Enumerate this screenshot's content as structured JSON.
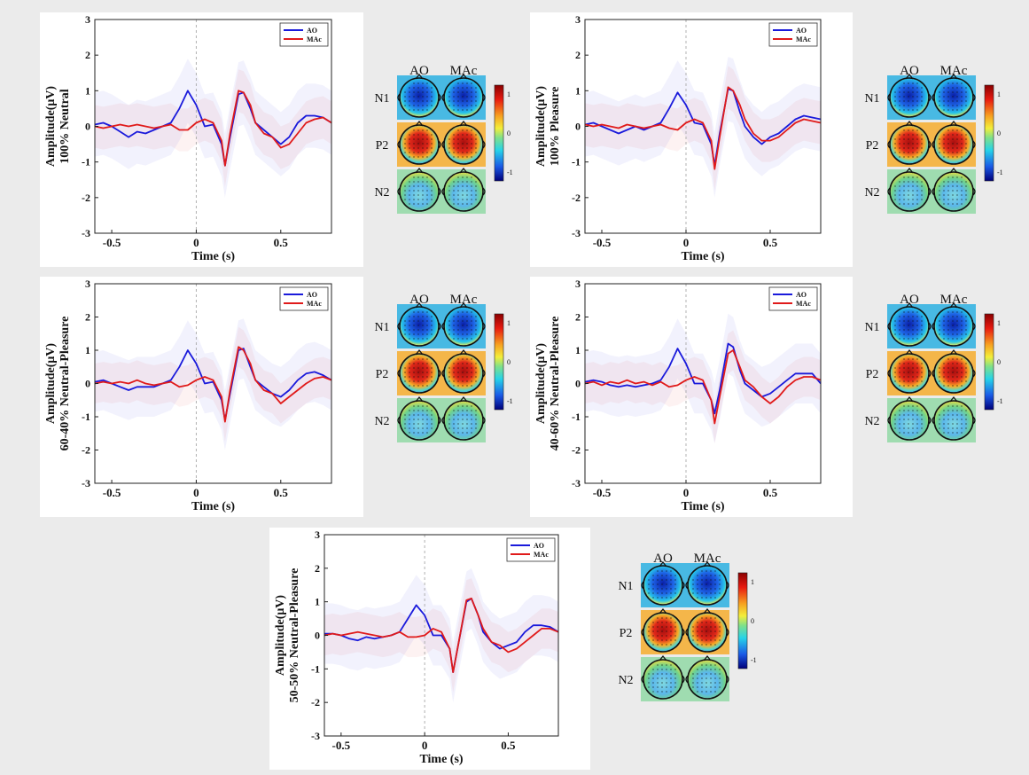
{
  "common": {
    "xlabel": "Time (s)",
    "x_ticks": [
      -0.5,
      0,
      0.5
    ],
    "y_ticks": [
      -3,
      -2,
      -1,
      0,
      1,
      2,
      3
    ],
    "xlim": [
      -0.6,
      0.8
    ],
    "ylim": [
      -3,
      3
    ],
    "legend": [
      "AO",
      "MAc"
    ],
    "colors": {
      "AO": "#1a1adb",
      "MAc": "#e01a1a"
    },
    "topo_cols": [
      "AO",
      "MAc"
    ],
    "topo_rows": [
      "N1",
      "P2",
      "N2"
    ],
    "colorbar_ticks": [
      "1",
      "0",
      "-1"
    ]
  },
  "chart_data": [
    {
      "type": "line",
      "ylabel": "Amplitude(μV)",
      "ylabel2": "100% Neutral",
      "xlabel": "Time (s)",
      "xlim": [
        -0.6,
        0.8
      ],
      "ylim": [
        -3,
        3
      ],
      "grid": false,
      "legend_position": "top-right",
      "series": [
        {
          "name": "AO",
          "x": [
            -0.6,
            -0.55,
            -0.5,
            -0.45,
            -0.4,
            -0.35,
            -0.3,
            -0.25,
            -0.2,
            -0.15,
            -0.1,
            -0.05,
            0,
            0.05,
            0.1,
            0.15,
            0.17,
            0.2,
            0.25,
            0.28,
            0.32,
            0.35,
            0.4,
            0.45,
            0.5,
            0.55,
            0.6,
            0.65,
            0.7,
            0.75,
            0.8
          ],
          "y": [
            0.05,
            0.1,
            0.0,
            -0.15,
            -0.3,
            -0.15,
            -0.2,
            -0.1,
            0.0,
            0.1,
            0.5,
            1.0,
            0.6,
            0.0,
            0.05,
            -0.5,
            -1.1,
            -0.3,
            0.9,
            0.95,
            0.5,
            0.1,
            -0.1,
            -0.3,
            -0.5,
            -0.3,
            0.1,
            0.3,
            0.3,
            0.25,
            0.1
          ]
        },
        {
          "name": "MAc",
          "x": [
            -0.6,
            -0.55,
            -0.5,
            -0.45,
            -0.4,
            -0.35,
            -0.3,
            -0.25,
            -0.2,
            -0.15,
            -0.1,
            -0.05,
            0,
            0.05,
            0.1,
            0.15,
            0.17,
            0.2,
            0.25,
            0.28,
            0.32,
            0.35,
            0.4,
            0.45,
            0.5,
            0.55,
            0.6,
            0.65,
            0.7,
            0.75,
            0.8
          ],
          "y": [
            0.0,
            -0.05,
            0.0,
            0.05,
            0.0,
            0.05,
            0.0,
            -0.05,
            0.0,
            0.05,
            -0.1,
            -0.1,
            0.1,
            0.2,
            0.1,
            -0.4,
            -1.1,
            -0.2,
            1.0,
            0.95,
            0.6,
            0.1,
            -0.2,
            -0.3,
            -0.6,
            -0.5,
            -0.2,
            0.1,
            0.2,
            0.25,
            0.1
          ]
        }
      ]
    },
    {
      "type": "line",
      "ylabel": "Amplitude(μV)",
      "ylabel2": "100% Pleasure",
      "xlabel": "Time (s)",
      "xlim": [
        -0.6,
        0.8
      ],
      "ylim": [
        -3,
        3
      ],
      "grid": false,
      "legend_position": "top-right",
      "series": [
        {
          "name": "AO",
          "x": [
            -0.6,
            -0.55,
            -0.5,
            -0.45,
            -0.4,
            -0.35,
            -0.3,
            -0.25,
            -0.2,
            -0.15,
            -0.1,
            -0.05,
            0,
            0.05,
            0.1,
            0.15,
            0.17,
            0.2,
            0.25,
            0.28,
            0.32,
            0.35,
            0.4,
            0.45,
            0.5,
            0.55,
            0.6,
            0.65,
            0.7,
            0.75,
            0.8
          ],
          "y": [
            0.05,
            0.1,
            0.0,
            -0.1,
            -0.2,
            -0.1,
            0.0,
            -0.1,
            0.0,
            0.1,
            0.5,
            0.95,
            0.6,
            0.1,
            0.05,
            -0.5,
            -1.1,
            -0.2,
            1.05,
            1.0,
            0.4,
            0.0,
            -0.3,
            -0.5,
            -0.3,
            -0.2,
            0.0,
            0.2,
            0.3,
            0.25,
            0.2
          ]
        },
        {
          "name": "MAc",
          "x": [
            -0.6,
            -0.55,
            -0.5,
            -0.45,
            -0.4,
            -0.35,
            -0.3,
            -0.25,
            -0.2,
            -0.15,
            -0.1,
            -0.05,
            0,
            0.05,
            0.1,
            0.15,
            0.17,
            0.2,
            0.25,
            0.28,
            0.32,
            0.35,
            0.4,
            0.45,
            0.5,
            0.55,
            0.6,
            0.65,
            0.7,
            0.75,
            0.8
          ],
          "y": [
            0.05,
            0.0,
            0.05,
            0.0,
            -0.05,
            0.05,
            0.0,
            -0.05,
            0.0,
            0.05,
            -0.05,
            -0.1,
            0.1,
            0.2,
            0.1,
            -0.4,
            -1.2,
            -0.3,
            1.1,
            1.0,
            0.6,
            0.2,
            -0.2,
            -0.4,
            -0.4,
            -0.3,
            -0.1,
            0.1,
            0.2,
            0.15,
            0.1
          ]
        }
      ]
    },
    {
      "type": "line",
      "ylabel": "Amplitude(μV)",
      "ylabel2": "60-40% Neutral-Pleasure",
      "xlabel": "Time (s)",
      "xlim": [
        -0.6,
        0.8
      ],
      "ylim": [
        -3,
        3
      ],
      "grid": false,
      "legend_position": "top-right",
      "series": [
        {
          "name": "AO",
          "x": [
            -0.6,
            -0.55,
            -0.5,
            -0.45,
            -0.4,
            -0.35,
            -0.3,
            -0.25,
            -0.2,
            -0.15,
            -0.1,
            -0.05,
            0,
            0.05,
            0.1,
            0.15,
            0.17,
            0.2,
            0.25,
            0.28,
            0.32,
            0.35,
            0.4,
            0.45,
            0.5,
            0.55,
            0.6,
            0.65,
            0.7,
            0.75,
            0.8
          ],
          "y": [
            0.05,
            0.1,
            0.0,
            -0.1,
            -0.2,
            -0.1,
            -0.1,
            -0.1,
            0.0,
            0.1,
            0.5,
            1.0,
            0.6,
            0.0,
            0.05,
            -0.5,
            -1.1,
            -0.3,
            1.0,
            1.05,
            0.5,
            0.1,
            -0.1,
            -0.3,
            -0.4,
            -0.2,
            0.1,
            0.3,
            0.35,
            0.25,
            0.1
          ]
        },
        {
          "name": "MAc",
          "x": [
            -0.6,
            -0.55,
            -0.5,
            -0.45,
            -0.4,
            -0.35,
            -0.3,
            -0.25,
            -0.2,
            -0.15,
            -0.1,
            -0.05,
            0,
            0.05,
            0.1,
            0.15,
            0.17,
            0.2,
            0.25,
            0.28,
            0.32,
            0.35,
            0.4,
            0.45,
            0.5,
            0.55,
            0.6,
            0.65,
            0.7,
            0.75,
            0.8
          ],
          "y": [
            0.0,
            0.05,
            0.0,
            0.05,
            0.0,
            0.1,
            0.0,
            -0.05,
            0.0,
            0.05,
            -0.1,
            -0.05,
            0.1,
            0.2,
            0.1,
            -0.4,
            -1.15,
            -0.2,
            1.1,
            1.0,
            0.6,
            0.1,
            -0.2,
            -0.3,
            -0.6,
            -0.4,
            -0.2,
            0.0,
            0.15,
            0.2,
            0.1
          ]
        }
      ]
    },
    {
      "type": "line",
      "ylabel": "Amplitude(μV)",
      "ylabel2": "40-60% Neutral-Pleasure",
      "xlabel": "Time (s)",
      "xlim": [
        -0.6,
        0.8
      ],
      "ylim": [
        -3,
        3
      ],
      "grid": false,
      "legend_position": "top-right",
      "series": [
        {
          "name": "AO",
          "x": [
            -0.6,
            -0.55,
            -0.5,
            -0.45,
            -0.4,
            -0.35,
            -0.3,
            -0.25,
            -0.2,
            -0.15,
            -0.1,
            -0.05,
            0,
            0.05,
            0.1,
            0.15,
            0.17,
            0.2,
            0.25,
            0.28,
            0.32,
            0.35,
            0.4,
            0.45,
            0.5,
            0.55,
            0.6,
            0.65,
            0.7,
            0.75,
            0.8
          ],
          "y": [
            0.05,
            0.1,
            0.05,
            -0.05,
            -0.1,
            -0.05,
            -0.1,
            -0.05,
            0.0,
            0.1,
            0.5,
            1.05,
            0.6,
            0.0,
            0.0,
            -0.5,
            -0.9,
            -0.2,
            1.2,
            1.1,
            0.4,
            0.0,
            -0.2,
            -0.4,
            -0.3,
            -0.1,
            0.1,
            0.3,
            0.3,
            0.3,
            0.0
          ]
        },
        {
          "name": "MAc",
          "x": [
            -0.6,
            -0.55,
            -0.5,
            -0.45,
            -0.4,
            -0.35,
            -0.3,
            -0.25,
            -0.2,
            -0.15,
            -0.1,
            -0.05,
            0,
            0.05,
            0.1,
            0.15,
            0.17,
            0.2,
            0.25,
            0.28,
            0.32,
            0.35,
            0.4,
            0.45,
            0.5,
            0.55,
            0.6,
            0.65,
            0.7,
            0.75,
            0.8
          ],
          "y": [
            0.0,
            0.05,
            -0.05,
            0.05,
            0.0,
            0.1,
            0.0,
            0.05,
            -0.05,
            0.05,
            -0.1,
            -0.05,
            0.1,
            0.2,
            0.1,
            -0.5,
            -1.2,
            -0.4,
            0.9,
            1.0,
            0.5,
            0.1,
            -0.1,
            -0.4,
            -0.6,
            -0.4,
            -0.1,
            0.1,
            0.2,
            0.2,
            0.1
          ]
        }
      ]
    },
    {
      "type": "line",
      "ylabel": "Amplitude(μV)",
      "ylabel2": "50-50% Neutral-Pleasure",
      "xlabel": "Time (s)",
      "xlim": [
        -0.6,
        0.8
      ],
      "ylim": [
        -3,
        3
      ],
      "grid": false,
      "legend_position": "top-right",
      "series": [
        {
          "name": "AO",
          "x": [
            -0.6,
            -0.55,
            -0.5,
            -0.45,
            -0.4,
            -0.35,
            -0.3,
            -0.25,
            -0.2,
            -0.15,
            -0.1,
            -0.05,
            0,
            0.05,
            0.1,
            0.15,
            0.17,
            0.2,
            0.25,
            0.28,
            0.32,
            0.35,
            0.4,
            0.45,
            0.5,
            0.55,
            0.6,
            0.65,
            0.7,
            0.75,
            0.8
          ],
          "y": [
            0.05,
            0.05,
            0.0,
            -0.1,
            -0.15,
            -0.05,
            -0.1,
            -0.05,
            0.0,
            0.1,
            0.5,
            0.9,
            0.6,
            0.0,
            0.0,
            -0.4,
            -1.1,
            -0.3,
            1.0,
            1.1,
            0.6,
            0.1,
            -0.2,
            -0.4,
            -0.3,
            -0.2,
            0.1,
            0.3,
            0.3,
            0.25,
            0.1
          ]
        },
        {
          "name": "MAc",
          "x": [
            -0.6,
            -0.55,
            -0.5,
            -0.45,
            -0.4,
            -0.35,
            -0.3,
            -0.25,
            -0.2,
            -0.15,
            -0.1,
            -0.05,
            0,
            0.05,
            0.1,
            0.15,
            0.17,
            0.2,
            0.25,
            0.28,
            0.32,
            0.35,
            0.4,
            0.45,
            0.5,
            0.55,
            0.6,
            0.65,
            0.7,
            0.75,
            0.8
          ],
          "y": [
            0.0,
            0.05,
            0.0,
            0.05,
            0.1,
            0.05,
            0.0,
            -0.05,
            0.0,
            0.1,
            -0.05,
            -0.05,
            0.0,
            0.2,
            0.1,
            -0.4,
            -1.1,
            -0.3,
            1.05,
            1.1,
            0.6,
            0.2,
            -0.2,
            -0.3,
            -0.5,
            -0.4,
            -0.2,
            0.0,
            0.2,
            0.2,
            0.1
          ]
        }
      ]
    }
  ]
}
